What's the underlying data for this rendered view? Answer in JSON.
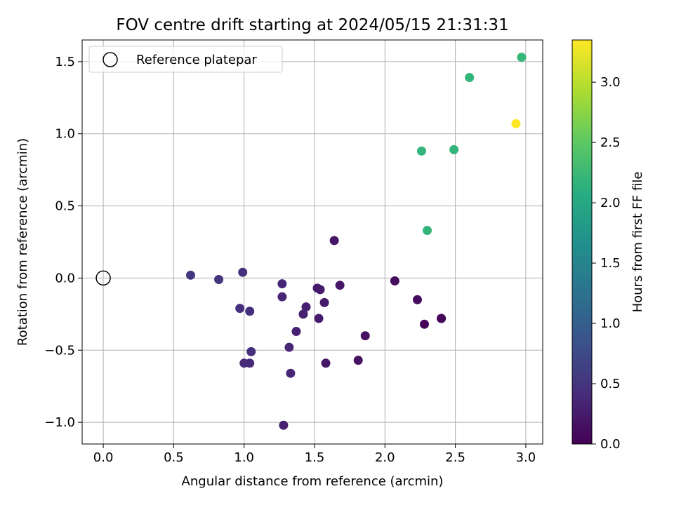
{
  "chart_data": {
    "type": "scatter",
    "title": "FOV centre drift starting at 2024/05/15 21:31:31",
    "xlabel": "Angular distance from reference (arcmin)",
    "ylabel": "Rotation from reference (arcmin)",
    "xlim": [
      -0.15,
      3.12
    ],
    "ylim": [
      -1.15,
      1.65
    ],
    "xticks": [
      0.0,
      0.5,
      1.0,
      1.5,
      2.0,
      2.5,
      3.0
    ],
    "xtick_labels": [
      "0.0",
      "0.5",
      "1.0",
      "1.5",
      "2.0",
      "2.5",
      "3.0"
    ],
    "yticks": [
      -1.0,
      -0.5,
      0.0,
      0.5,
      1.0,
      1.5
    ],
    "ytick_labels": [
      "−1.0",
      "−0.5",
      "0.0",
      "0.5",
      "1.0",
      "1.5"
    ],
    "grid": true,
    "legend": {
      "position": "top-left",
      "entries": [
        "Reference platepar"
      ]
    },
    "reference": {
      "x": 0.0,
      "y": 0.0
    },
    "colorbar": {
      "label": "Hours from first FF file",
      "range": [
        0.0,
        3.35
      ],
      "ticks": [
        0.0,
        0.5,
        1.0,
        1.5,
        2.0,
        2.5,
        3.0
      ],
      "tick_labels": [
        "0.0",
        "0.5",
        "1.0",
        "1.5",
        "2.0",
        "2.5",
        "3.0"
      ],
      "colormap": "viridis"
    },
    "points": [
      {
        "x": 0.62,
        "y": 0.02,
        "t": 0.55
      },
      {
        "x": 0.82,
        "y": -0.01,
        "t": 0.5
      },
      {
        "x": 0.99,
        "y": 0.04,
        "t": 0.45
      },
      {
        "x": 0.97,
        "y": -0.21,
        "t": 0.45
      },
      {
        "x": 1.04,
        "y": -0.23,
        "t": 0.45
      },
      {
        "x": 1.05,
        "y": -0.51,
        "t": 0.45
      },
      {
        "x": 1.0,
        "y": -0.59,
        "t": 0.4
      },
      {
        "x": 1.04,
        "y": -0.59,
        "t": 0.4
      },
      {
        "x": 1.27,
        "y": -0.04,
        "t": 0.35
      },
      {
        "x": 1.27,
        "y": -0.13,
        "t": 0.35
      },
      {
        "x": 1.28,
        "y": -1.02,
        "t": 0.3
      },
      {
        "x": 1.32,
        "y": -0.48,
        "t": 0.35
      },
      {
        "x": 1.33,
        "y": -0.66,
        "t": 0.35
      },
      {
        "x": 1.37,
        "y": -0.37,
        "t": 0.3
      },
      {
        "x": 1.42,
        "y": -0.25,
        "t": 0.3
      },
      {
        "x": 1.44,
        "y": -0.2,
        "t": 0.3
      },
      {
        "x": 1.52,
        "y": -0.07,
        "t": 0.25
      },
      {
        "x": 1.54,
        "y": -0.08,
        "t": 0.25
      },
      {
        "x": 1.53,
        "y": -0.28,
        "t": 0.25
      },
      {
        "x": 1.57,
        "y": -0.17,
        "t": 0.25
      },
      {
        "x": 1.58,
        "y": -0.59,
        "t": 0.2
      },
      {
        "x": 1.64,
        "y": 0.26,
        "t": 0.2
      },
      {
        "x": 1.68,
        "y": -0.05,
        "t": 0.2
      },
      {
        "x": 1.81,
        "y": -0.57,
        "t": 0.15
      },
      {
        "x": 1.86,
        "y": -0.4,
        "t": 0.15
      },
      {
        "x": 2.07,
        "y": -0.02,
        "t": 0.1
      },
      {
        "x": 2.23,
        "y": -0.15,
        "t": 0.1
      },
      {
        "x": 2.28,
        "y": -0.32,
        "t": 0.05
      },
      {
        "x": 2.4,
        "y": -0.28,
        "t": 0.02
      },
      {
        "x": 2.4,
        "y": -0.28,
        "t": 0.05
      },
      {
        "x": 2.26,
        "y": 0.88,
        "t": 2.2
      },
      {
        "x": 2.3,
        "y": 0.33,
        "t": 2.2
      },
      {
        "x": 2.49,
        "y": 0.89,
        "t": 2.2
      },
      {
        "x": 2.6,
        "y": 1.39,
        "t": 2.2
      },
      {
        "x": 2.97,
        "y": 1.53,
        "t": 2.25
      },
      {
        "x": 2.93,
        "y": 1.07,
        "t": 3.35
      }
    ]
  }
}
